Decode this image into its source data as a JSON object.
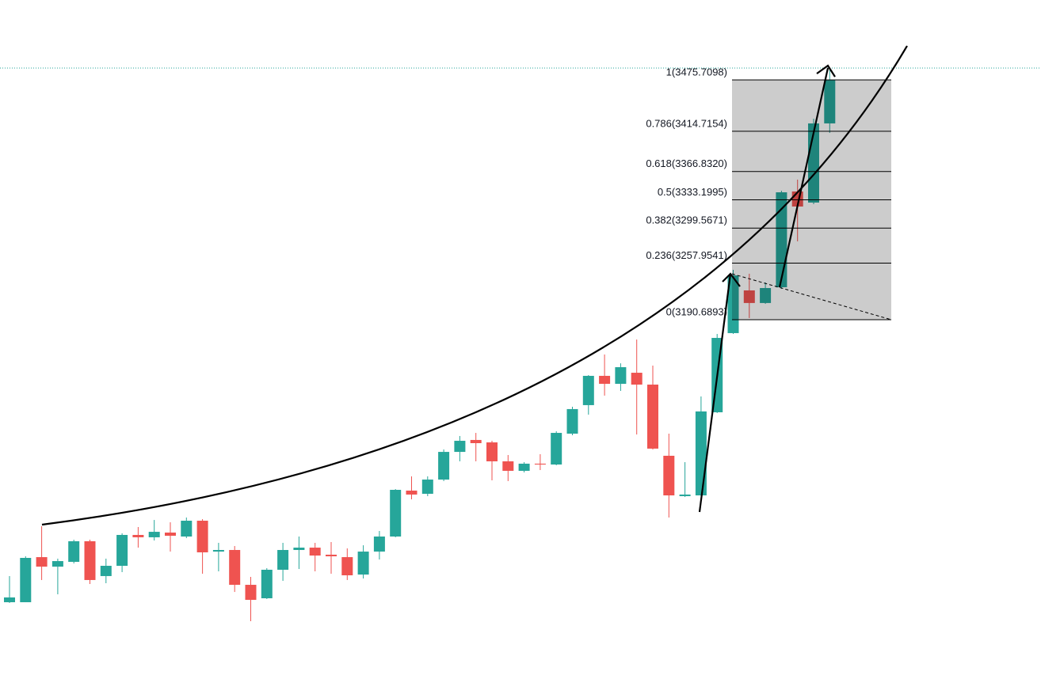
{
  "chart_data": {
    "type": "candlestick",
    "up_color": "#26a69a",
    "down_color": "#ef5350",
    "ylim": [
      2745.7,
      3570.7
    ],
    "open": [
      2854.8,
      2854.8,
      2908.4,
      2897.1,
      2902.8,
      2927.3,
      2885.9,
      2898.1,
      2934.8,
      2932.0,
      2937.6,
      2932.9,
      2951.7,
      2915.0,
      2916.9,
      2875.5,
      2859.5,
      2893.4,
      2916.9,
      2919.7,
      2911.3,
      2908.4,
      2887.7,
      2915.0,
      2932.9,
      2987.5,
      2983.7,
      3000.6,
      3033.5,
      3047.7,
      3044.8,
      3022.3,
      3011.0,
      3019.5,
      3018.5,
      3055.2,
      3089.1,
      3123.9,
      3114.4,
      3127.6,
      3113.5,
      3028.9,
      2980.9,
      2981.8,
      3080.6,
      3174.7,
      3225.5,
      3210.5,
      3229.2,
      3343.1,
      3329.9,
      3424.0
    ],
    "high": [
      2885.9,
      2909.4,
      2945.1,
      2906.6,
      2929.1,
      2929.1,
      2906.6,
      2936.7,
      2944.2,
      2952.6,
      2949.8,
      2955.5,
      2953.6,
      2925.4,
      2921.6,
      2884.9,
      2895.3,
      2925.4,
      2932.9,
      2925.4,
      2926.3,
      2918.8,
      2922.5,
      2939.5,
      2989.3,
      3004.4,
      3004.4,
      3036.4,
      3052.4,
      3056.1,
      3046.7,
      3029.8,
      3021.3,
      3030.8,
      3058.0,
      3087.2,
      3124.8,
      3149.3,
      3138.8,
      3167.1,
      3136.1,
      3055.2,
      3021.3,
      3099.4,
      3173.7,
      3249.9,
      3245.3,
      3235.0,
      3344.0,
      3357.2,
      3429.6,
      3490.8
    ],
    "low": [
      2853.9,
      2854.8,
      2881.2,
      2864.2,
      2900.9,
      2876.5,
      2877.4,
      2890.6,
      2919.7,
      2928.2,
      2915.0,
      2931.0,
      2888.7,
      2891.5,
      2867.0,
      2832.2,
      2858.6,
      2880.2,
      2894.3,
      2891.5,
      2888.7,
      2881.2,
      2883.0,
      2905.6,
      2932.0,
      2977.1,
      2980.9,
      2998.8,
      3022.3,
      3022.3,
      2999.7,
      2998.8,
      3009.1,
      3011.9,
      3017.6,
      3053.3,
      3077.8,
      3100.4,
      3106.0,
      3054.2,
      3036.4,
      2955.5,
      2979.9,
      2980.9,
      3079.7,
      3173.7,
      3192.6,
      3209.5,
      3227.3,
      3283.8,
      3328.0,
      3412.7
    ],
    "close": [
      2860.5,
      2907.5,
      2897.1,
      2903.7,
      2927.3,
      2881.2,
      2898.1,
      2934.8,
      2932.0,
      2938.5,
      2933.8,
      2951.7,
      2914.1,
      2916.9,
      2875.5,
      2857.6,
      2893.4,
      2916.9,
      2919.7,
      2910.3,
      2909.4,
      2886.8,
      2915.0,
      2932.9,
      2988.4,
      2982.8,
      3000.6,
      3033.5,
      3046.7,
      3043.9,
      3022.3,
      3011.0,
      3019.5,
      3018.5,
      3056.1,
      3084.4,
      3123.9,
      3114.4,
      3134.2,
      3113.5,
      3037.4,
      2981.8,
      2982.8,
      3081.6,
      3169.0,
      3243.3,
      3210.5,
      3228.3,
      3342.1,
      3325.2,
      3424.0,
      3475.7
    ],
    "price_line": 3489.8,
    "fib_levels": [
      {
        "value": 3475.7098,
        "label": "1(3475.7098)"
      },
      {
        "value": 3414.7154,
        "label": "0.786(3414.7154)"
      },
      {
        "value": 3366.832,
        "label": "0.618(3366.8320)"
      },
      {
        "value": 3333.1995,
        "label": "0.5(3333.1995)"
      },
      {
        "value": 3299.5671,
        "label": "0.382(3299.5671)"
      },
      {
        "value": 3257.9541,
        "label": "0.236(3257.9541)"
      },
      {
        "value": 3190.6893,
        "label": "0(3190.6893)"
      }
    ]
  }
}
